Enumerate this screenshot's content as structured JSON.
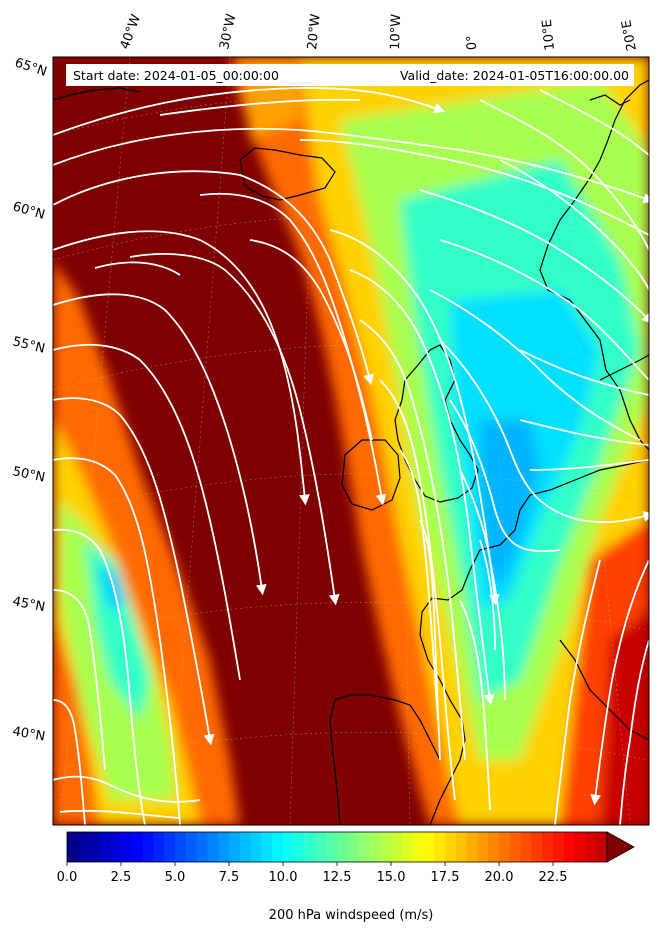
{
  "header": {
    "start_date": "Start date: 2024-01-05_00:00:00",
    "valid_date": "Valid_date: 2024-01-05T16:00:00.00"
  },
  "map": {
    "longitude_labels": [
      "40°W",
      "30°W",
      "20°W",
      "10°W",
      "0°",
      "10°E",
      "20°E"
    ],
    "latitude_labels": [
      "65°N",
      "60°N",
      "55°N",
      "50°N",
      "45°N",
      "40°N"
    ],
    "field": "200 hPa windspeed",
    "overlay": "streamlines",
    "colormap": "jet",
    "extend": "max"
  },
  "colorbar": {
    "label": "200 hPa windspeed (m/s)",
    "min": 0,
    "max": 25,
    "ticks": [
      "0.0",
      "2.5",
      "5.0",
      "7.5",
      "10.0",
      "12.5",
      "15.0",
      "17.5",
      "20.0",
      "22.5"
    ],
    "tick_values": [
      0,
      2.5,
      5,
      7.5,
      10,
      12.5,
      15,
      17.5,
      20,
      22.5
    ],
    "levels": 50
  }
}
